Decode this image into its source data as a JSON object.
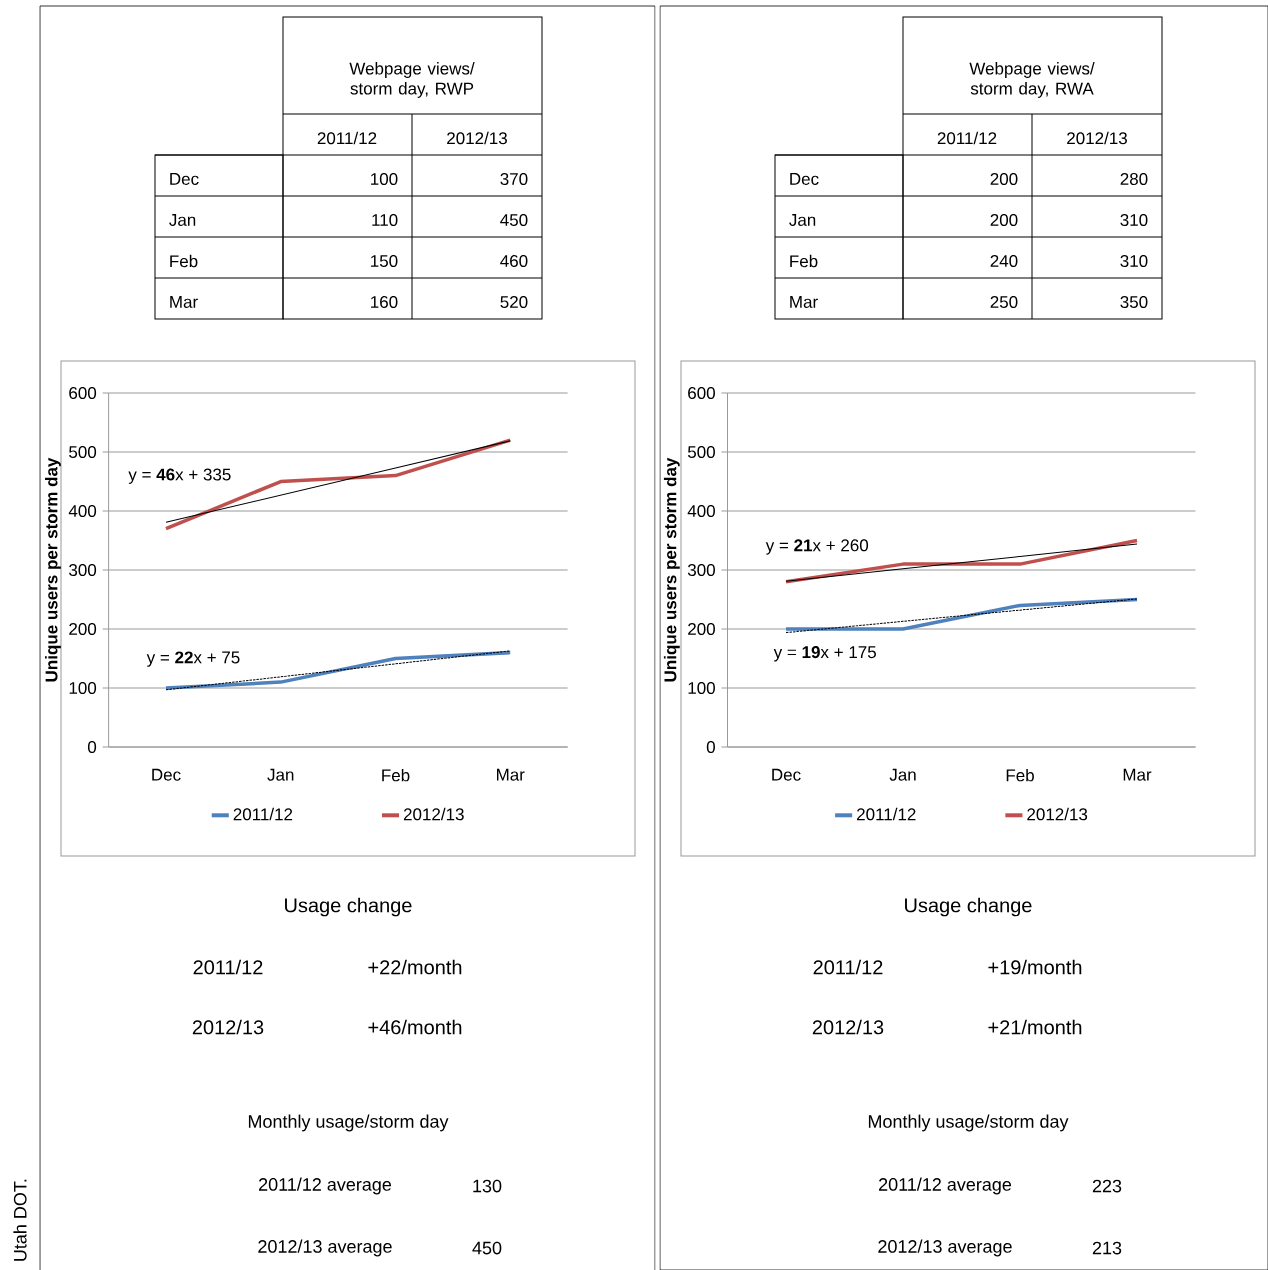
{
  "chart_data": [
    {
      "type": "other",
      "title": "Webpage views/ storm day, RWP",
      "categories": [
        "Dec",
        "Jan",
        "Feb",
        "Mar"
      ],
      "data_labels": true,
      "series": [
        {
          "name": "2011/12",
          "values": [
            100,
            110,
            150,
            160
          ]
        },
        {
          "name": "2012/13",
          "values": [
            370,
            450,
            460,
            520
          ]
        }
      ]
    },
    {
      "type": "line",
      "ylabel": "Unique users per storm day",
      "categories": [
        "Dec",
        "Jan",
        "Feb",
        "Mar"
      ],
      "series": [
        {
          "name": "2011/12",
          "color": "#4f81bd",
          "values": [
            100,
            110,
            150,
            160
          ]
        },
        {
          "name": "2012/13",
          "color": "#c0504d",
          "values": [
            370,
            450,
            460,
            520
          ]
        },
        {
          "type": "line",
          "color": "#000000",
          "line_style": "solid",
          "values": [
            381,
            427,
            473,
            519
          ]
        },
        {
          "type": "line",
          "color": "#000000",
          "line_style": "dashed",
          "values": [
            97,
            119,
            141,
            163
          ]
        }
      ],
      "ylim": [
        0,
        600
      ],
      "yticks": [
        0,
        100,
        200,
        300,
        400,
        500,
        600
      ],
      "grid": "y",
      "legend": "bottom",
      "annotations": [
        "y = **46**x + 335",
        "y = **22**x + 75",
        "Usage change",
        "2011/12",
        "+22/month",
        "2012/13",
        "+46/month",
        "Monthly usage/storm day",
        "2011/12 average",
        "130",
        "2012/13 average",
        "450",
        "Utah DOT."
      ]
    },
    {
      "type": "other",
      "title": "Webpage views/ storm day, RWA",
      "categories": [
        "Dec",
        "Jan",
        "Feb",
        "Mar"
      ],
      "data_labels": true,
      "series": [
        {
          "name": "2011/12",
          "values": [
            200,
            200,
            240,
            250
          ]
        },
        {
          "name": "2012/13",
          "values": [
            280,
            310,
            310,
            350
          ]
        }
      ]
    },
    {
      "type": "line",
      "ylabel": "Unique users per storm day",
      "categories": [
        "Dec",
        "Jan",
        "Feb",
        "Mar"
      ],
      "series": [
        {
          "name": "2011/12",
          "color": "#4f81bd",
          "values": [
            200,
            200,
            240,
            250
          ]
        },
        {
          "name": "2012/13",
          "color": "#c0504d",
          "values": [
            280,
            310,
            310,
            350
          ]
        },
        {
          "type": "line",
          "color": "#000000",
          "line_style": "solid",
          "values": [
            281,
            302,
            323,
            344
          ]
        },
        {
          "type": "line",
          "color": "#000000",
          "line_style": "dashed",
          "values": [
            194,
            213,
            232,
            251
          ]
        }
      ],
      "ylim": [
        0,
        600
      ],
      "yticks": [
        0,
        100,
        200,
        300,
        400,
        500,
        600
      ],
      "grid": "y",
      "legend": "bottom",
      "annotations": [
        "y = **21**x + 260",
        "y = **19**x + 175",
        "Usage change",
        "2011/12",
        "+19/month",
        "2012/13",
        "+21/month",
        "Monthly usage/storm day",
        "2011/12 average",
        "223",
        "2012/13 average",
        "213"
      ]
    }
  ]
}
